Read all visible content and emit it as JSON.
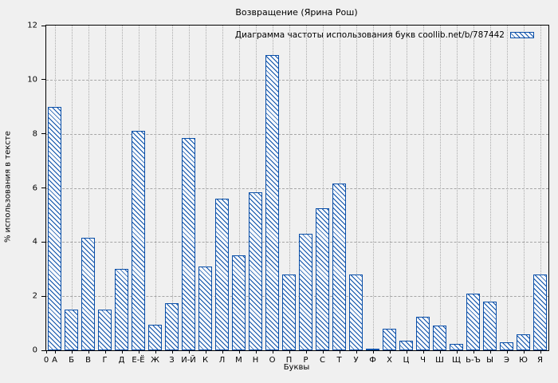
{
  "title": "Возвращение (Ярина Рош)",
  "legend": {
    "label": "Диаграмма частоты использования букв coollib.net/b/787442"
  },
  "axes": {
    "x_title": "Буквы",
    "y_title": "% использования в тексте",
    "origin_label": "0"
  },
  "colors": {
    "bar_stroke": "#0a4fa8",
    "bar_fill": "#f7f9fc",
    "background": "#f0f0f0",
    "grid": "#a6a6a6",
    "axis": "#000000"
  },
  "chart_data": {
    "type": "bar",
    "title": "Возвращение (Ярина Рош)",
    "legend_label": "Диаграмма частоты использования букв coollib.net/b/787442",
    "legend_position": "top-right",
    "xlabel": "Буквы",
    "ylabel": "% использования в тексте",
    "ylim": [
      0,
      12
    ],
    "yticks": [
      0,
      2,
      4,
      6,
      8,
      10,
      12
    ],
    "grid": true,
    "hatch": "diagonal-backslash",
    "origin_label": "0",
    "categories": [
      "А",
      "Б",
      "В",
      "Г",
      "Д",
      "Е-Ё",
      "Ж",
      "З",
      "И-Й",
      "К",
      "Л",
      "М",
      "Н",
      "О",
      "П",
      "Р",
      "С",
      "Т",
      "У",
      "Ф",
      "Х",
      "Ц",
      "Ч",
      "Ш",
      "Щ",
      "Ь-Ъ",
      "Ы",
      "Э",
      "Ю",
      "Я"
    ],
    "values": [
      9.0,
      1.5,
      4.15,
      1.5,
      3.0,
      8.1,
      0.95,
      1.75,
      7.85,
      3.1,
      5.6,
      3.5,
      5.85,
      10.9,
      2.8,
      4.3,
      5.25,
      6.15,
      2.8,
      0.07,
      0.8,
      0.35,
      1.25,
      0.9,
      0.25,
      2.1,
      1.8,
      0.3,
      0.6,
      2.8
    ]
  }
}
